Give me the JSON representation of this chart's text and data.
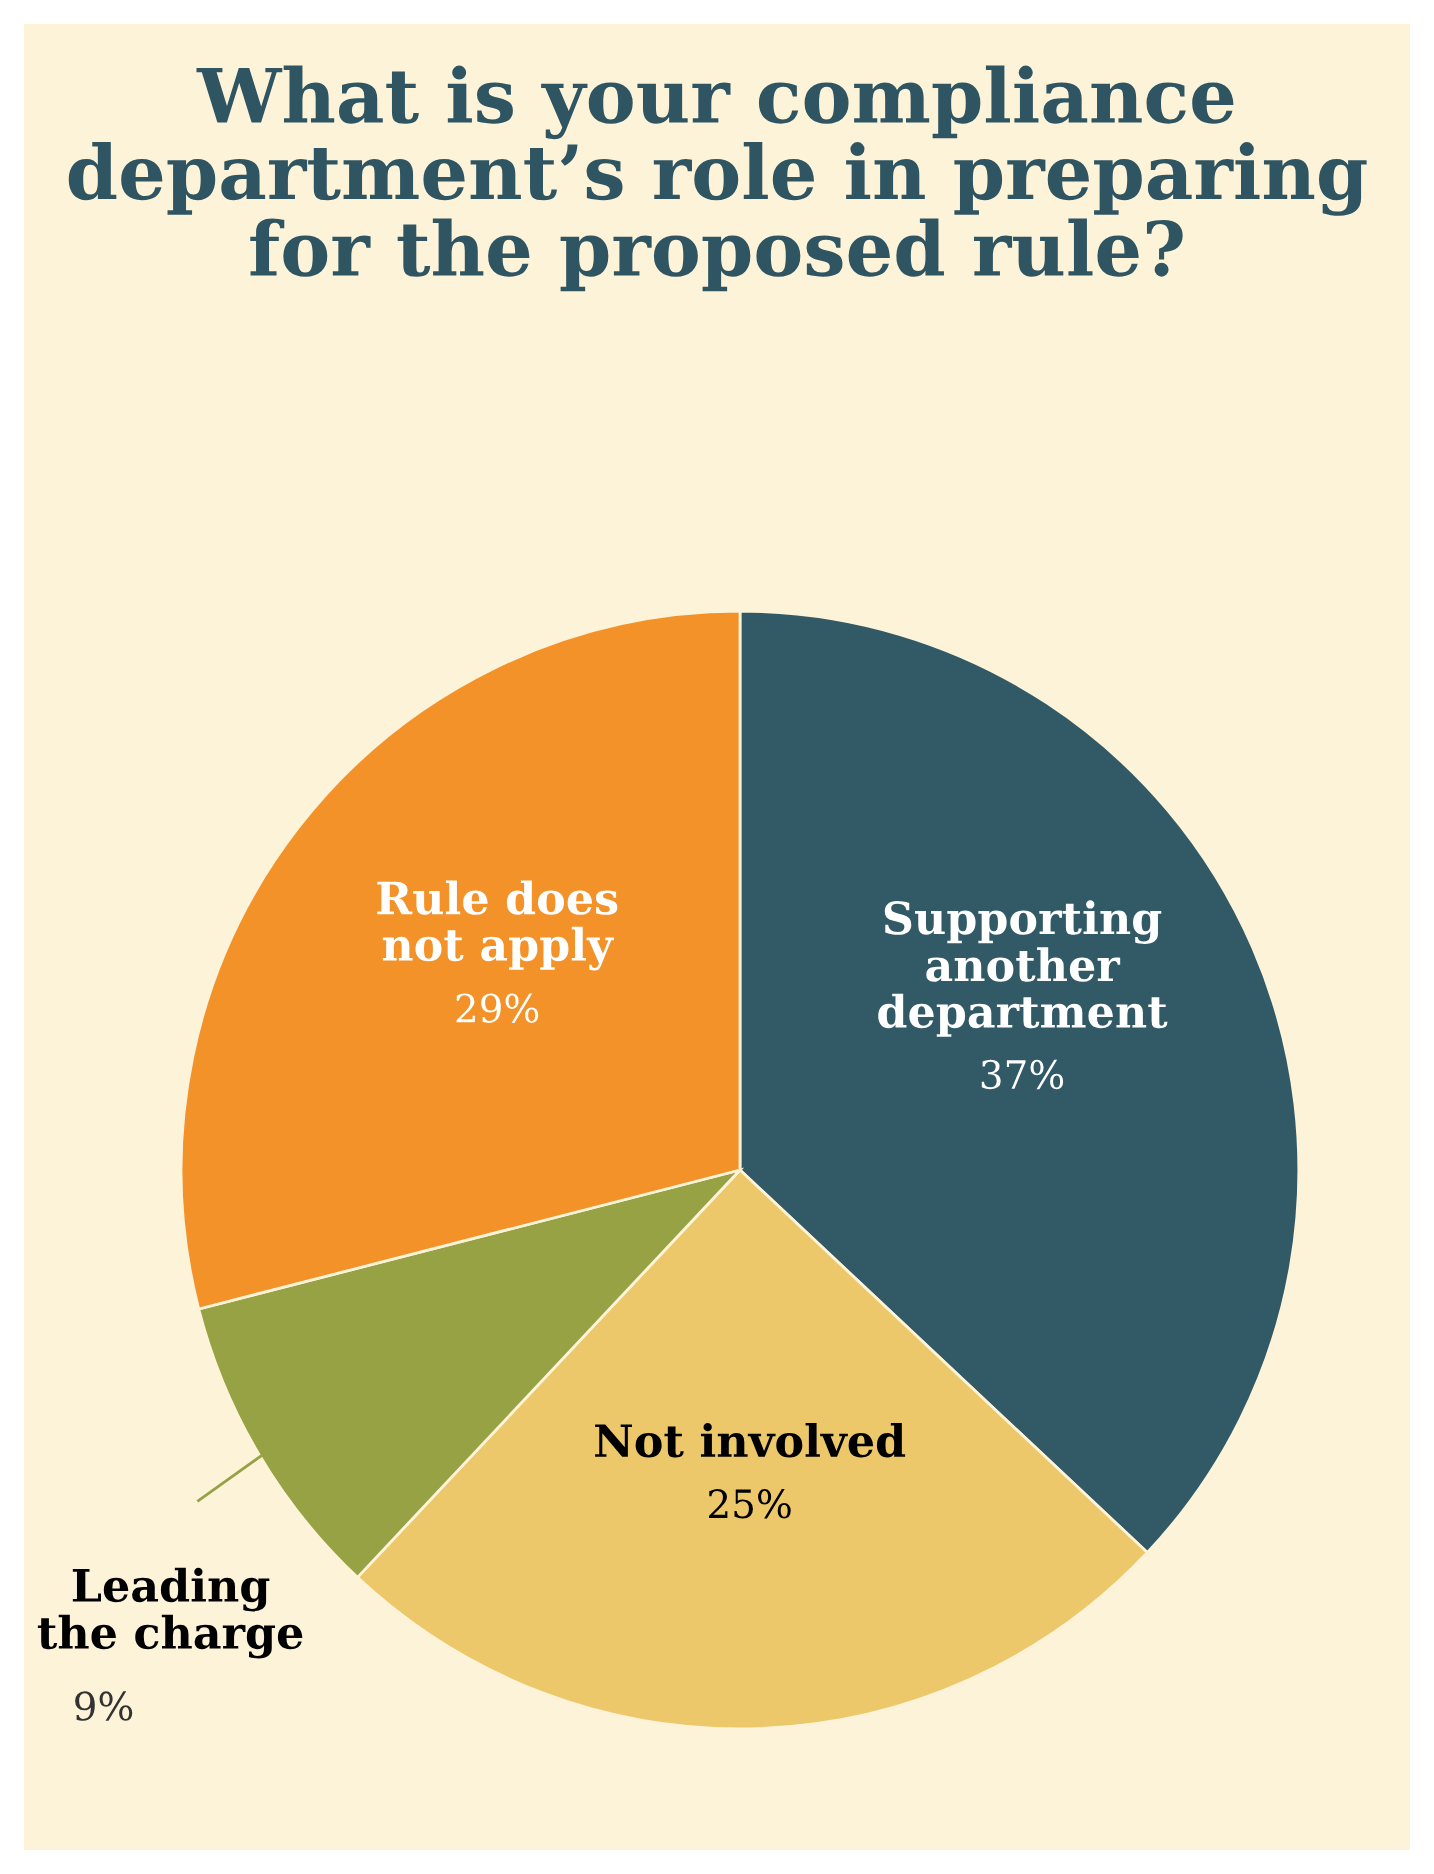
{
  "chart_data": {
    "type": "pie",
    "title": "What is your compliance department’s role in preparing for the proposed rule?",
    "categories": [
      "Supporting another department",
      "Not involved",
      "Leading the charge",
      "Rule does not apply"
    ],
    "values": [
      37,
      25,
      9,
      29
    ],
    "colors": [
      "#325a66",
      "#ecc86a",
      "#96a244",
      "#f39229"
    ],
    "value_labels": [
      "37%",
      "25%",
      "9%",
      "29%"
    ]
  }
}
